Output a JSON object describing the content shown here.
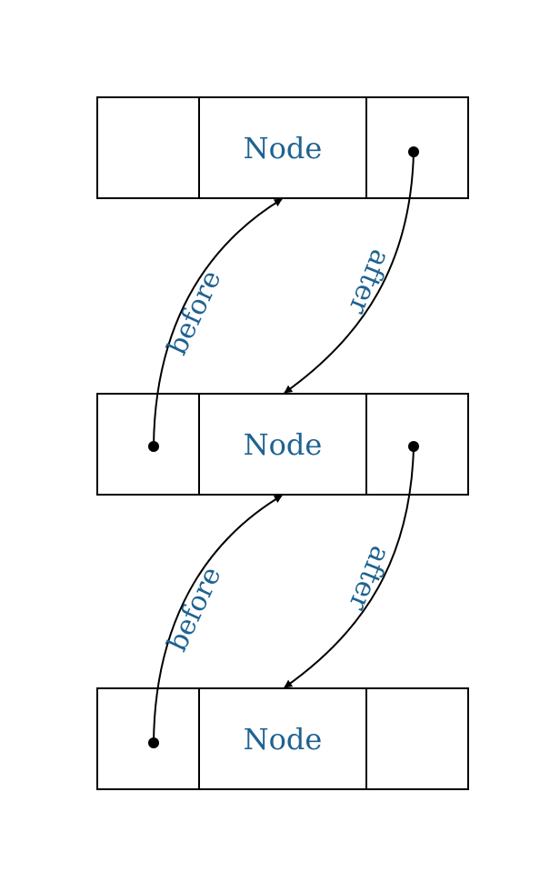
{
  "colors": {
    "label": "#1f6391",
    "line": "#000000"
  },
  "nodes": [
    {
      "label": "Node",
      "has_before_pointer": false,
      "has_after_pointer": true
    },
    {
      "label": "Node",
      "has_before_pointer": true,
      "has_after_pointer": true
    },
    {
      "label": "Node",
      "has_before_pointer": true,
      "has_after_pointer": false
    }
  ],
  "edges": [
    {
      "label": "before",
      "kind": "before",
      "from": 1,
      "to": 0
    },
    {
      "label": "after",
      "kind": "after",
      "from": 0,
      "to": 1
    },
    {
      "label": "before",
      "kind": "before",
      "from": 2,
      "to": 1
    },
    {
      "label": "after",
      "kind": "after",
      "from": 1,
      "to": 2
    }
  ]
}
